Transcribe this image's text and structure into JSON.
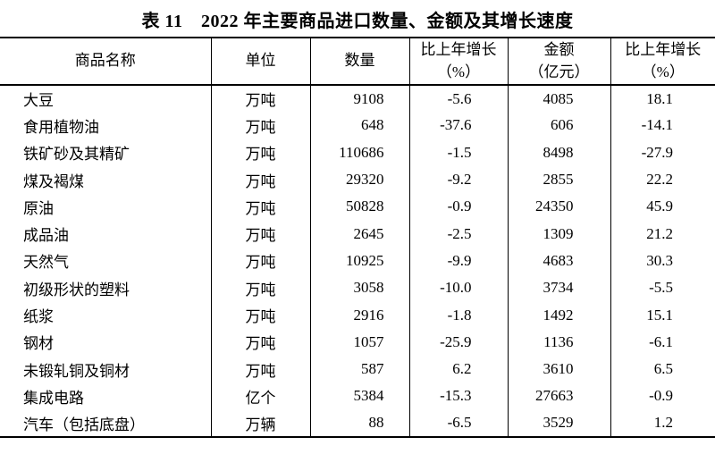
{
  "title": "表 11　2022 年主要商品进口数量、金额及其增长速度",
  "colors": {
    "text": "#000000",
    "border": "#000000",
    "background": "#ffffff"
  },
  "table": {
    "headers": [
      [
        "商品名称"
      ],
      [
        "单位"
      ],
      [
        "数量"
      ],
      [
        "比上年增长",
        "（%）"
      ],
      [
        "金额",
        "（亿元）"
      ],
      [
        "比上年增长",
        "（%）"
      ]
    ],
    "rows": [
      [
        "大豆",
        "万吨",
        "9108",
        "-5.6",
        "4085",
        "18.1"
      ],
      [
        "食用植物油",
        "万吨",
        "648",
        "-37.6",
        "606",
        "-14.1"
      ],
      [
        "铁矿砂及其精矿",
        "万吨",
        "110686",
        "-1.5",
        "8498",
        "-27.9"
      ],
      [
        "煤及褐煤",
        "万吨",
        "29320",
        "-9.2",
        "2855",
        "22.2"
      ],
      [
        "原油",
        "万吨",
        "50828",
        "-0.9",
        "24350",
        "45.9"
      ],
      [
        "成品油",
        "万吨",
        "2645",
        "-2.5",
        "1309",
        "21.2"
      ],
      [
        "天然气",
        "万吨",
        "10925",
        "-9.9",
        "4683",
        "30.3"
      ],
      [
        "初级形状的塑料",
        "万吨",
        "3058",
        "-10.0",
        "3734",
        "-5.5"
      ],
      [
        "纸浆",
        "万吨",
        "2916",
        "-1.8",
        "1492",
        "15.1"
      ],
      [
        "钢材",
        "万吨",
        "1057",
        "-25.9",
        "1136",
        "-6.1"
      ],
      [
        "未锻轧铜及铜材",
        "万吨",
        "587",
        "6.2",
        "3610",
        "6.5"
      ],
      [
        "集成电路",
        "亿个",
        "5384",
        "-15.3",
        "27663",
        "-0.9"
      ],
      [
        "汽车（包括底盘）",
        "万辆",
        "88",
        "-6.5",
        "3529",
        "1.2"
      ]
    ]
  }
}
